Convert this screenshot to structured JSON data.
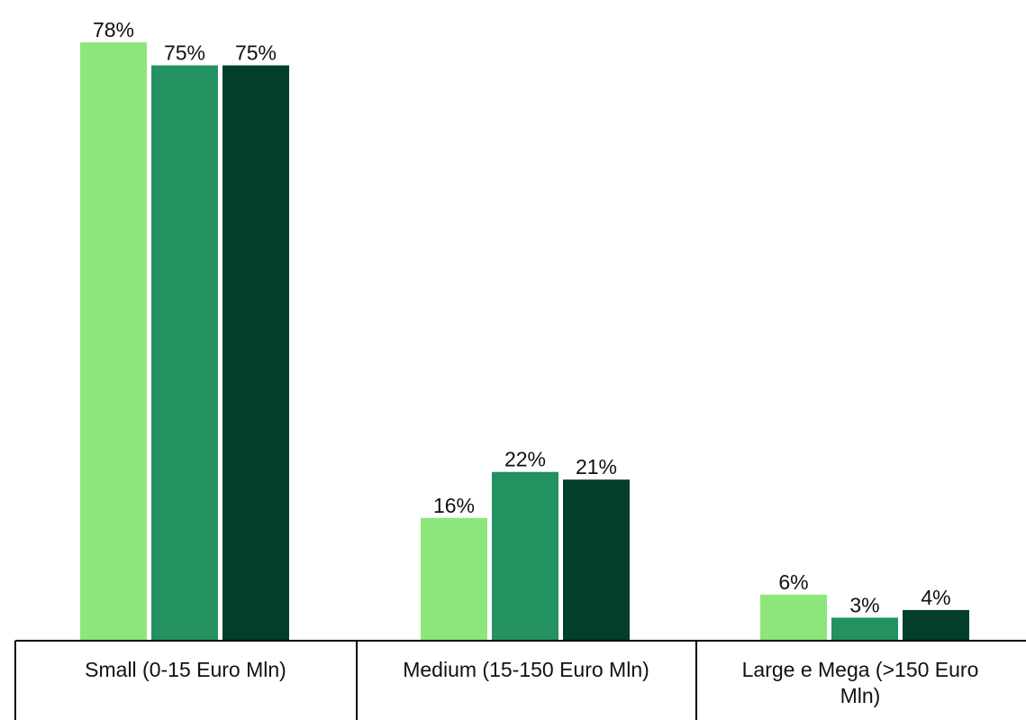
{
  "chart_data": {
    "type": "bar",
    "title": "",
    "xlabel": "",
    "ylabel": "",
    "ylim": [
      0,
      78
    ],
    "grid": false,
    "legend": "none",
    "categories": [
      [
        "Small (0-15 Euro Mln)"
      ],
      [
        "Medium (15-150 Euro Mln)"
      ],
      [
        "Large e Mega (>150 Euro",
        "Mln)"
      ]
    ],
    "series": [
      {
        "color": "#8de67a",
        "values": [
          78,
          16,
          6
        ],
        "labels": [
          "78%",
          "16%",
          "6%"
        ]
      },
      {
        "color": "#249160",
        "values": [
          75,
          22,
          3
        ],
        "labels": [
          "75%",
          "22%",
          "3%"
        ]
      },
      {
        "color": "#023e2a",
        "values": [
          75,
          21,
          4
        ],
        "labels": [
          "75%",
          "21%",
          "4%"
        ]
      }
    ]
  }
}
